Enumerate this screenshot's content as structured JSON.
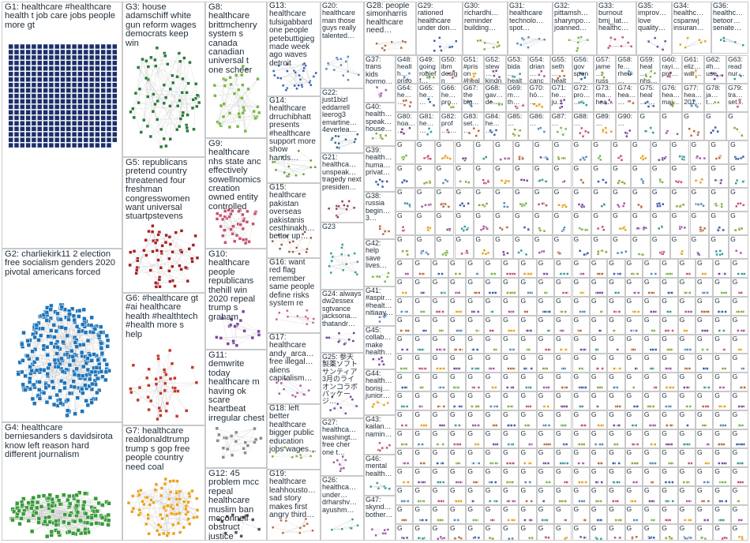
{
  "colors": {
    "border": "#c9c9c9",
    "edge": "#b8b8b8",
    "node_outline": "#3a3a3a",
    "label_text": "#1f2d3a",
    "groups": {
      "G1": "#1c2f6b",
      "G2": "#1f74b8",
      "G3": "#2c7a3a",
      "G4": "#3a9a3a",
      "G5": "#a51f22",
      "G6": "#c0392b",
      "G7": "#e8a21c",
      "G8": "#7ab648",
      "G9": "#c7526d",
      "G10": "#7a4a9a",
      "G11": "#8a8a8a",
      "G12": "#555555",
      "G13": "#3a5fa8",
      "G14": "#6a9a3a",
      "G15": "#9a5a3a",
      "G16": "#d06090",
      "G17": "#a55aa5",
      "G18": "#8aa83a",
      "G19": "#b86a3a",
      "G20": "#5a8ab8",
      "G21": "#9a3a5a",
      "G22": "#3a6a8a",
      "G23": "#3a9a9a",
      "G24": "#6a3a8a"
    }
  },
  "groups_big": [
    {
      "id": "G1",
      "label": "G1: healthcare #healthcare health t job care jobs people more gt",
      "nodes": 360
    },
    {
      "id": "G2",
      "label": "G2: charliekirk11 2 election free socialism genders 2020 pivotal americans forced",
      "nodes": 320
    },
    {
      "id": "G3",
      "label": "G3: house adamschiff white gun reform wages democrats keep win",
      "nodes": 70
    },
    {
      "id": "G4",
      "label": "G4: healthcare berniesanders s davidsirota know left reason hard different journalism",
      "nodes": 160
    },
    {
      "id": "G5",
      "label": "G5: republicans pretend country threatened four freshman congresswomen want universal stuartpstevens",
      "nodes": 60
    },
    {
      "id": "G6",
      "label": "G6: #healthcare gt #ai healthcare health #healthtech #health more s help",
      "nodes": 40
    },
    {
      "id": "G7",
      "label": "G7: healthcare realdonaldtrump trump s gop free people country need coal",
      "nodes": 90
    },
    {
      "id": "G8",
      "label": "G8: healthcare brittmchenry system s canada canadian universal t one scheer",
      "nodes": 40
    },
    {
      "id": "G9",
      "label": "G9: healthcare nhs state anc effectively sowellnomics creation owned entity controlled",
      "nodes": 40
    },
    {
      "id": "G10",
      "label": "G10: healthcare people republicans thehill win 2020 repeal trump s graham",
      "nodes": 20
    },
    {
      "id": "G11",
      "label": "G11: demwrite today healthcare m having ok scare heartbeat irregular chest",
      "nodes": 20
    },
    {
      "id": "G12",
      "label": "G12: 45 problem mcc repeal healthcare muslim ban mcconnell obstruct justice",
      "nodes": 12
    },
    {
      "id": "G13",
      "label": "G13: healthcare tulsigabbard one people petebuttigieg made week ago waves detroit",
      "nodes": 30
    },
    {
      "id": "G14",
      "label": "G14: healthcare drruchibhatt presents #healthcare support more show hands…",
      "nodes": 16
    },
    {
      "id": "G15",
      "label": "G15: healthcare pakistan overseas pakistanis cesthinakh… better up…",
      "nodes": 16
    },
    {
      "id": "G16",
      "label": "G16: want red flag remember same people define risks system re",
      "nodes": 12
    },
    {
      "id": "G17",
      "label": "G17: healthcare andy_arca… free illegal… aliens capitalism…",
      "nodes": 12
    },
    {
      "id": "G18",
      "label": "G18: left better healthcare bigger public education jobs wages…",
      "nodes": 10
    },
    {
      "id": "G19",
      "label": "G19: healthcare leahhousto… sad story makes first angry third…",
      "nodes": 10
    },
    {
      "id": "G20",
      "label": "G20: healthcare man those guys really talented…",
      "nodes": 14
    },
    {
      "id": "G21",
      "label": "G21: healthca… unspeak… tragedy next presiden…",
      "nodes": 12
    },
    {
      "id": "G22",
      "label": "G22: just1bizl eddarrell leerog3 emartine… 4everlea…",
      "nodes": 12
    },
    {
      "id": "G23",
      "label": "G23",
      "nodes": 16
    },
    {
      "id": "G24",
      "label": "G24: always dw2essex sgtvance jacksona… thatandr…",
      "nodes": 10
    },
    {
      "id": "G25",
      "label": "G25: 参天 製薬ソフト サンティア 3月のライ オンコラボ パッケージ…",
      "nodes": 10
    },
    {
      "id": "G26",
      "label": "G26: healthca… under… drharshv… ayushm…",
      "nodes": 8
    },
    {
      "id": "G27",
      "label": "G27: healthca… washingt… free cher one t…",
      "nodes": 8
    },
    {
      "id": "G28",
      "label": "G28: people simonharris healthcare need…",
      "nodes": 8
    },
    {
      "id": "G29",
      "label": "G29: rationed healthcare under don…",
      "nodes": 8
    },
    {
      "id": "G30",
      "label": "G30: richardhi… reminder building…",
      "nodes": 8
    },
    {
      "id": "G31",
      "label": "G31: healthcare technolo… spot…",
      "nodes": 8
    },
    {
      "id": "G32",
      "label": "G32: pittamsh… sharynpo… joanned…",
      "nodes": 8
    },
    {
      "id": "G33",
      "label": "G33: burnout bmj_lat… healthc…",
      "nodes": 8
    },
    {
      "id": "G34",
      "label": "G34: healthc… cspanwj insuran…",
      "nodes": 6
    },
    {
      "id": "G35",
      "label": "G35: improv… love quality…",
      "nodes": 6
    },
    {
      "id": "G36",
      "label": "G36: healthc… betoor… senate…",
      "nodes": 6
    },
    {
      "id": "G37",
      "label": "G37: trans kids hormo…",
      "nodes": 6
    },
    {
      "id": "G38",
      "label": "G38: russia begin… 3…",
      "nodes": 6
    },
    {
      "id": "G39",
      "label": "G39: health… huma… privat…",
      "nodes": 6
    },
    {
      "id": "G40",
      "label": "G40: health… speak… house…",
      "nodes": 6
    },
    {
      "id": "G41",
      "label": "G41: #aspir… #healt… nitiaay…",
      "nodes": 6
    },
    {
      "id": "G42",
      "label": "G42: help save lives…",
      "nodes": 6
    },
    {
      "id": "G43",
      "label": "G43: kailan… namin…",
      "nodes": 6
    },
    {
      "id": "G44",
      "label": "G44: health… borisj… junior…",
      "nodes": 6
    },
    {
      "id": "G45",
      "label": "G45: collab… make health…",
      "nodes": 6
    },
    {
      "id": "G46",
      "label": "G46: mental health…",
      "nodes": 6
    },
    {
      "id": "G47",
      "label": "G47: skynd… bother…",
      "nodes": 6
    }
  ],
  "small_labels": [
    "G48: health… prison…",
    "G49: going robjeff…",
    "G50: ibm design",
    "G51: #prison #healt…",
    "G52: stew… kindn…",
    "G53: bida… healt…",
    "G54: drian… canc…",
    "G55: seth… healt…",
    "G56: gov spen…",
    "G57: jame… russ…",
    "G58: fe… rheu…",
    "G59: heal… nhs…",
    "G60: rayi… pre…",
    "G61: eliz… war…",
    "G62: #h… use…",
    "G63: read nur…",
    "G64: he… …",
    "G65: he… …",
    "G66: he… pro…",
    "G67: the big…",
    "G68: gav… de…",
    "G69: m… th…",
    "G70: hö… …",
    "G71: he… ju…",
    "G72: pro… …",
    "G73: ma… hea…",
    "G74: hea… …",
    "G75: heal… …",
    "G76: hea… maj…",
    "G77: hea… 201…",
    "G78: ja… t…",
    "G79: tra… set…",
    "G80: hoa… …",
    "G81: he… …",
    "G82: prof… …",
    "G83: set… …",
    "G84: he… …",
    "G85: …",
    "G86: …",
    "G87: …",
    "G88: …",
    "G89: …",
    "G90: …"
  ]
}
